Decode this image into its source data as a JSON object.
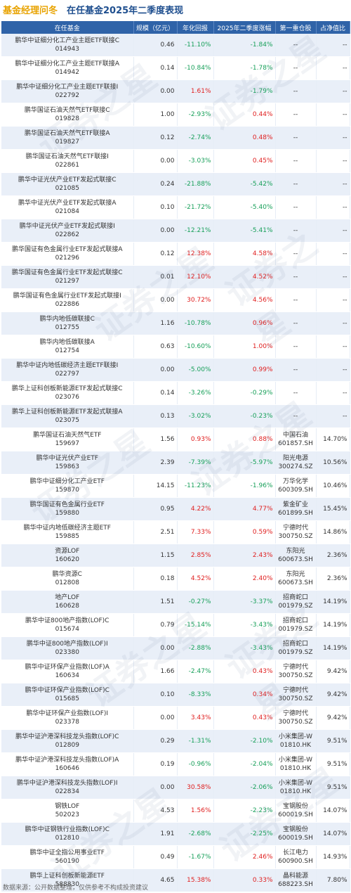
{
  "header": {
    "title_main": "基金经理问冬",
    "title_sub": "在任基金2025年二季度表现"
  },
  "table": {
    "columns": [
      "在任基金",
      "规模（亿元）",
      "年化回报",
      "2025年二季度涨幅",
      "第一重仓股",
      "占净值比"
    ],
    "rows": [
      {
        "name": "鹏华中证细分化工产业主题ETF联接C",
        "code": "014943",
        "scale": "0.46",
        "annual": "-11.10%",
        "q2": "-1.84%",
        "stock": "--",
        "stock_code": "",
        "ratio": "--"
      },
      {
        "name": "鹏华中证细分化工产业主题ETF联接A",
        "code": "014942",
        "scale": "0.14",
        "annual": "-10.84%",
        "q2": "-1.78%",
        "stock": "--",
        "stock_code": "",
        "ratio": "--"
      },
      {
        "name": "鹏华中证细分化工产业主题ETF联接I",
        "code": "022792",
        "scale": "0.00",
        "annual": "1.61%",
        "q2": "-1.79%",
        "stock": "--",
        "stock_code": "",
        "ratio": "--"
      },
      {
        "name": "鹏华国证石油天然气ETF联接C",
        "code": "019828",
        "scale": "1.00",
        "annual": "-2.93%",
        "q2": "0.44%",
        "stock": "--",
        "stock_code": "",
        "ratio": "--"
      },
      {
        "name": "鹏华国证石油天然气ETF联接A",
        "code": "019827",
        "scale": "0.12",
        "annual": "-2.74%",
        "q2": "0.48%",
        "stock": "--",
        "stock_code": "",
        "ratio": "--"
      },
      {
        "name": "鹏华国证石油天然气ETF联接I",
        "code": "022861",
        "scale": "0.00",
        "annual": "-3.03%",
        "q2": "0.45%",
        "stock": "--",
        "stock_code": "",
        "ratio": "--"
      },
      {
        "name": "鹏华中证光伏产业ETF发起式联接C",
        "code": "021085",
        "scale": "0.24",
        "annual": "-21.88%",
        "q2": "-5.42%",
        "stock": "--",
        "stock_code": "",
        "ratio": "--"
      },
      {
        "name": "鹏华中证光伏产业ETF发起式联接A",
        "code": "021084",
        "scale": "0.10",
        "annual": "-21.72%",
        "q2": "-5.40%",
        "stock": "--",
        "stock_code": "",
        "ratio": "--"
      },
      {
        "name": "鹏华中证光伏产业ETF发起式联接I",
        "code": "022862",
        "scale": "0.00",
        "annual": "-12.21%",
        "q2": "-5.41%",
        "stock": "--",
        "stock_code": "",
        "ratio": "--"
      },
      {
        "name": "鹏华国证有色金属行业ETF发起式联接A",
        "code": "021296",
        "scale": "0.12",
        "annual": "12.38%",
        "q2": "4.58%",
        "stock": "--",
        "stock_code": "",
        "ratio": "--"
      },
      {
        "name": "鹏华国证有色金属行业ETF发起式联接C",
        "code": "021297",
        "scale": "0.01",
        "annual": "12.10%",
        "q2": "4.52%",
        "stock": "--",
        "stock_code": "",
        "ratio": "--"
      },
      {
        "name": "鹏华国证有色金属行业ETF发起式联接I",
        "code": "022886",
        "scale": "0.00",
        "annual": "30.72%",
        "q2": "4.56%",
        "stock": "--",
        "stock_code": "",
        "ratio": "--"
      },
      {
        "name": "鹏华内地低碳联接C",
        "code": "012755",
        "scale": "1.16",
        "annual": "-10.78%",
        "q2": "0.96%",
        "stock": "--",
        "stock_code": "",
        "ratio": "--"
      },
      {
        "name": "鹏华内地低碳联接A",
        "code": "012754",
        "scale": "0.63",
        "annual": "-10.60%",
        "q2": "1.00%",
        "stock": "--",
        "stock_code": "",
        "ratio": "--"
      },
      {
        "name": "鹏华中证内地低碳经济主题ETF联接I",
        "code": "022797",
        "scale": "0.00",
        "annual": "-5.00%",
        "q2": "0.99%",
        "stock": "--",
        "stock_code": "",
        "ratio": "--"
      },
      {
        "name": "鹏华上证科创板新能源ETF发起式联接C",
        "code": "023076",
        "scale": "0.14",
        "annual": "-3.26%",
        "q2": "-0.29%",
        "stock": "--",
        "stock_code": "",
        "ratio": "--"
      },
      {
        "name": "鹏华上证科创板新能源ETF发起式联接A",
        "code": "023075",
        "scale": "0.13",
        "annual": "-3.02%",
        "q2": "-0.23%",
        "stock": "--",
        "stock_code": "",
        "ratio": "--"
      },
      {
        "name": "鹏华国证石油天然气ETF",
        "code": "159697",
        "scale": "1.56",
        "annual": "0.93%",
        "q2": "0.88%",
        "stock": "中国石油",
        "stock_code": "601857.SH",
        "ratio": "14.70%"
      },
      {
        "name": "鹏华中证光伏产业ETF",
        "code": "159863",
        "scale": "2.39",
        "annual": "-7.39%",
        "q2": "-5.97%",
        "stock": "阳光电源",
        "stock_code": "300274.SZ",
        "ratio": "10.56%"
      },
      {
        "name": "鹏华中证细分化工产业ETF",
        "code": "159870",
        "scale": "14.15",
        "annual": "-11.23%",
        "q2": "-1.96%",
        "stock": "万华化学",
        "stock_code": "600309.SH",
        "ratio": "10.46%"
      },
      {
        "name": "鹏华国证有色金属行业ETF",
        "code": "159880",
        "scale": "0.95",
        "annual": "4.22%",
        "q2": "4.77%",
        "stock": "紫金矿业",
        "stock_code": "601899.SH",
        "ratio": "15.45%"
      },
      {
        "name": "鹏华中证内地低碳经济主题ETF",
        "code": "159885",
        "scale": "2.51",
        "annual": "7.33%",
        "q2": "0.59%",
        "stock": "宁德时代",
        "stock_code": "300750.SZ",
        "ratio": "14.86%"
      },
      {
        "name": "资源LOF",
        "code": "160620",
        "scale": "1.15",
        "annual": "2.85%",
        "q2": "2.43%",
        "stock": "东阳光",
        "stock_code": "600673.SH",
        "ratio": "2.36%"
      },
      {
        "name": "鹏华资源C",
        "code": "012808",
        "scale": "0.18",
        "annual": "4.52%",
        "q2": "2.40%",
        "stock": "东阳光",
        "stock_code": "600673.SH",
        "ratio": "2.36%"
      },
      {
        "name": "地产LOF",
        "code": "160628",
        "scale": "1.51",
        "annual": "-0.27%",
        "q2": "-3.37%",
        "stock": "招商蛇口",
        "stock_code": "001979.SZ",
        "ratio": "14.19%"
      },
      {
        "name": "鹏华中证800地产指数(LOF)C",
        "code": "015674",
        "scale": "0.79",
        "annual": "-15.14%",
        "q2": "-3.43%",
        "stock": "招商蛇口",
        "stock_code": "001979.SZ",
        "ratio": "14.19%"
      },
      {
        "name": "鹏华中证800地产指数(LOF)I",
        "code": "023380",
        "scale": "0.00",
        "annual": "-2.88%",
        "q2": "-3.43%",
        "stock": "招商蛇口",
        "stock_code": "001979.SZ",
        "ratio": "14.19%"
      },
      {
        "name": "鹏华中证环保产业指数(LOF)A",
        "code": "160634",
        "scale": "1.66",
        "annual": "-2.47%",
        "q2": "0.43%",
        "stock": "宁德时代",
        "stock_code": "300750.SZ",
        "ratio": "9.42%"
      },
      {
        "name": "鹏华中证环保产业指数(LOF)C",
        "code": "015685",
        "scale": "0.10",
        "annual": "-8.33%",
        "q2": "0.34%",
        "stock": "宁德时代",
        "stock_code": "300750.SZ",
        "ratio": "9.42%"
      },
      {
        "name": "鹏华中证环保产业指数(LOF)I",
        "code": "023378",
        "scale": "0.00",
        "annual": "3.43%",
        "q2": "0.43%",
        "stock": "宁德时代",
        "stock_code": "300750.SZ",
        "ratio": "9.42%"
      },
      {
        "name": "鹏华中证沪港深科技龙头指数(LOF)C",
        "code": "012809",
        "scale": "0.29",
        "annual": "-1.31%",
        "q2": "-2.10%",
        "stock": "小米集团-W",
        "stock_code": "01810.HK",
        "ratio": "9.51%"
      },
      {
        "name": "鹏华中证沪港深科技龙头指数(LOF)A",
        "code": "160646",
        "scale": "0.19",
        "annual": "-0.96%",
        "q2": "-2.04%",
        "stock": "小米集团-W",
        "stock_code": "01810.HK",
        "ratio": "9.51%"
      },
      {
        "name": "鹏华中证沪港深科技龙头指数(LOF)I",
        "code": "022834",
        "scale": "0.00",
        "annual": "30.58%",
        "q2": "-2.06%",
        "stock": "小米集团-W",
        "stock_code": "01810.HK",
        "ratio": "9.51%"
      },
      {
        "name": "钢铁LOF",
        "code": "502023",
        "scale": "4.53",
        "annual": "1.56%",
        "q2": "-2.23%",
        "stock": "宝钢股份",
        "stock_code": "600019.SH",
        "ratio": "14.07%"
      },
      {
        "name": "鹏华中证钢铁行业指数(LOF)C",
        "code": "012810",
        "scale": "1.91",
        "annual": "-2.68%",
        "q2": "-2.25%",
        "stock": "宝钢股份",
        "stock_code": "600019.SH",
        "ratio": "14.07%"
      },
      {
        "name": "鹏华中证全指公用事业ETF",
        "code": "560190",
        "scale": "0.49",
        "annual": "-1.67%",
        "q2": "2.46%",
        "stock": "长江电力",
        "stock_code": "600900.SH",
        "ratio": "14.93%"
      },
      {
        "name": "鹏华上证科创板新能源ETF",
        "code": "588830",
        "scale": "4.65",
        "annual": "15.38%",
        "q2": "0.33%",
        "stock": "晶科能源",
        "stock_code": "688223.SH",
        "ratio": "7.80%"
      }
    ]
  },
  "footer": {
    "source": "数据来源：公开数据整理，仅供参考不构成投资建议"
  },
  "watermark": {
    "text": "证券之星"
  },
  "colors": {
    "header_bg": "#2f63a8",
    "positive": "#e02020",
    "negative": "#18a05a",
    "title_orange": "#e8a300",
    "title_blue": "#1f4f8f"
  }
}
